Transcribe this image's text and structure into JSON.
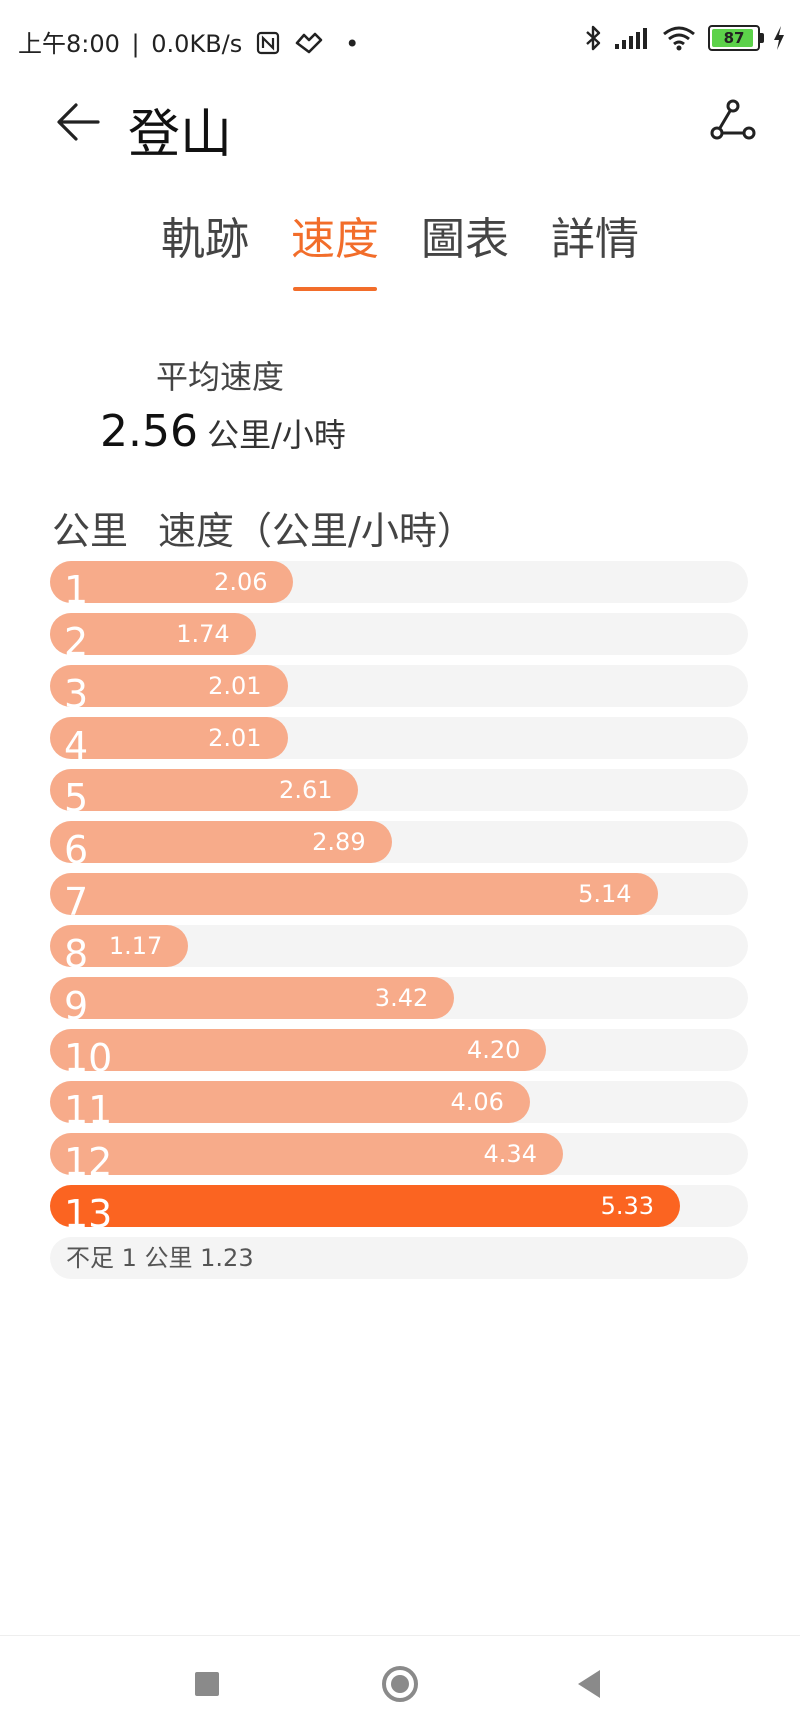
{
  "status_bar": {
    "time": "上午8:00",
    "network_speed": "0.0KB/s",
    "dot": "•",
    "battery": "87",
    "icons": [
      "nfc-icon",
      "app-icon",
      "bluetooth-icon",
      "signal-icon",
      "wifi-icon",
      "battery-icon",
      "charging-icon"
    ]
  },
  "header": {
    "title": "登山",
    "back_icon": "arrow-left-icon",
    "route_icon": "route-icon"
  },
  "tabs": [
    {
      "label": "軌跡",
      "active": false
    },
    {
      "label": "速度",
      "active": true
    },
    {
      "label": "圖表",
      "active": false
    },
    {
      "label": "詳情",
      "active": false
    }
  ],
  "summary": {
    "label": "平均速度",
    "value": "2.56",
    "unit": "公里/小時"
  },
  "table": {
    "col_km": "公里",
    "col_speed": "速度（公里/小時）",
    "max_value": 5.33,
    "rows": [
      {
        "km": "1",
        "speed": "2.06"
      },
      {
        "km": "2",
        "speed": "1.74"
      },
      {
        "km": "3",
        "speed": "2.01"
      },
      {
        "km": "4",
        "speed": "2.01"
      },
      {
        "km": "5",
        "speed": "2.61"
      },
      {
        "km": "6",
        "speed": "2.89"
      },
      {
        "km": "7",
        "speed": "5.14"
      },
      {
        "km": "8",
        "speed": "1.17"
      },
      {
        "km": "9",
        "speed": "3.42"
      },
      {
        "km": "10",
        "speed": "4.20"
      },
      {
        "km": "11",
        "speed": "4.06"
      },
      {
        "km": "12",
        "speed": "4.34"
      },
      {
        "km": "13",
        "speed": "5.33"
      }
    ],
    "remainder": "不足 1 公里 1.23"
  },
  "colors": {
    "accent": "#f26d2a",
    "bar": "#f7ab8a",
    "bar_max": "#fb6421",
    "track": "#f4f4f4"
  },
  "nav_bar": {
    "icons": [
      "recents-square-icon",
      "home-circle-icon",
      "back-triangle-icon"
    ]
  }
}
